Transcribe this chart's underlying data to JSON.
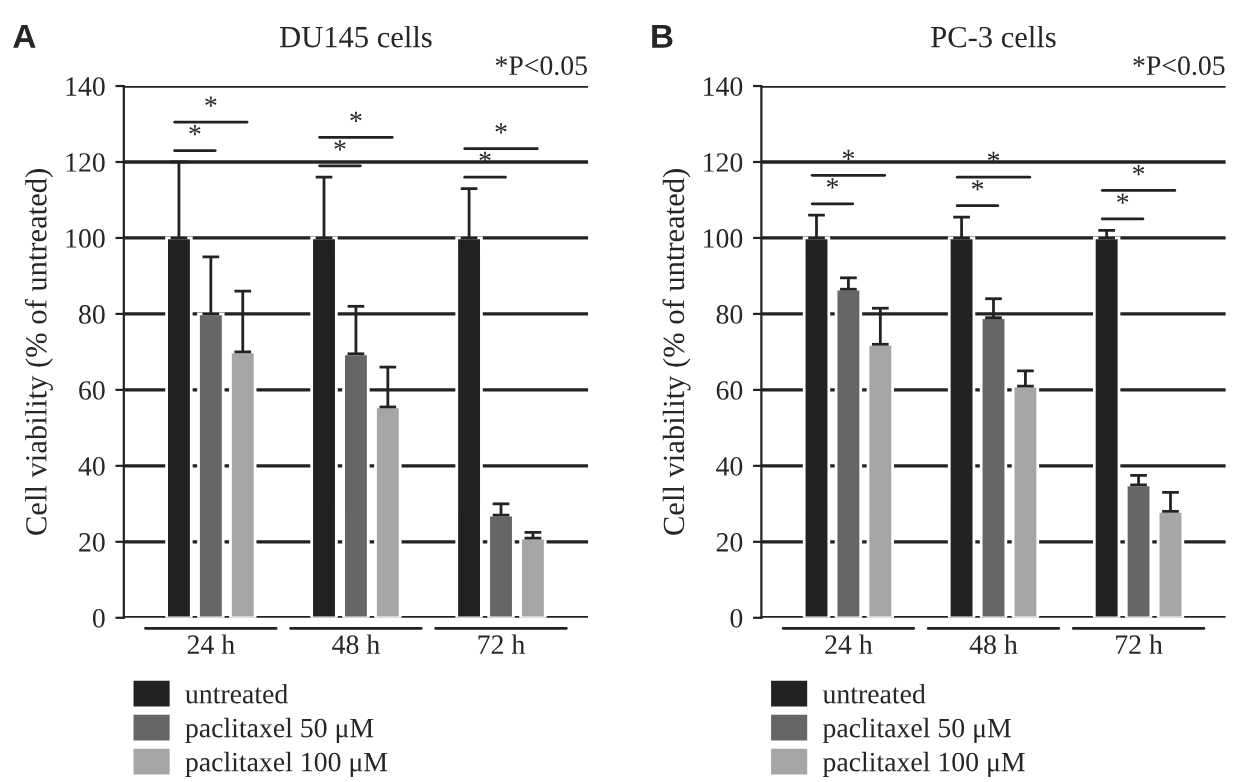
{
  "chart_data": [
    {
      "type": "bar",
      "title": "DU145 cells",
      "ylabel": "Cell viability (% of untreated)",
      "categories": [
        "24 h",
        "48 h",
        "72 h"
      ],
      "series": [
        {
          "name": "untreated",
          "color": "#222222",
          "values": [
            100,
            100,
            100
          ],
          "errors": [
            [
              100,
              120
            ],
            [
              100,
              116
            ],
            [
              100,
              113
            ]
          ]
        },
        {
          "name": "paclitaxel 50 μM",
          "color": "#666666",
          "values": [
            80,
            69.5,
            27
          ],
          "errors": [
            [
              80,
              95
            ],
            [
              69.5,
              82
            ],
            [
              27,
              30
            ]
          ]
        },
        {
          "name": "paclitaxel 100 μM",
          "color": "#a6a6a6",
          "values": [
            70,
            55.5,
            21
          ],
          "errors": [
            [
              70,
              86
            ],
            [
              55.5,
              66
            ],
            [
              21,
              22.5
            ]
          ]
        }
      ],
      "ylim": [
        0,
        140
      ],
      "yticks": [
        0,
        20,
        40,
        60,
        80,
        100,
        120,
        140
      ],
      "grid": "y",
      "legend": "bottom",
      "annotations": [
        "A",
        "*P<0.05",
        "*",
        "*",
        "*",
        "*",
        "*",
        "*"
      ]
    },
    {
      "type": "bar",
      "title": "PC-3 cells",
      "ylabel": "Cell viability (% of untreated)",
      "categories": [
        "24 h",
        "48 h",
        "72 h"
      ],
      "series": [
        {
          "name": "untreated",
          "color": "#222222",
          "values": [
            100,
            100,
            100
          ],
          "errors": [
            [
              100,
              106
            ],
            [
              100,
              105.5
            ],
            [
              100,
              102
            ]
          ]
        },
        {
          "name": "paclitaxel 50 μM",
          "color": "#666666",
          "values": [
            86.5,
            79,
            35
          ],
          "errors": [
            [
              86.5,
              89.5
            ],
            [
              79,
              84
            ],
            [
              35,
              37.5
            ]
          ]
        },
        {
          "name": "paclitaxel 100 μM",
          "color": "#a6a6a6",
          "values": [
            72,
            61,
            28
          ],
          "errors": [
            [
              72,
              81.5
            ],
            [
              61,
              65
            ],
            [
              28,
              33
            ]
          ]
        }
      ],
      "ylim": [
        0,
        140
      ],
      "yticks": [
        0,
        20,
        40,
        60,
        80,
        100,
        120,
        140
      ],
      "grid": "y",
      "legend": "bottom",
      "annotations": [
        "B",
        "*P<0.05",
        "*",
        "*",
        "*",
        "*",
        "*",
        "*"
      ]
    }
  ]
}
